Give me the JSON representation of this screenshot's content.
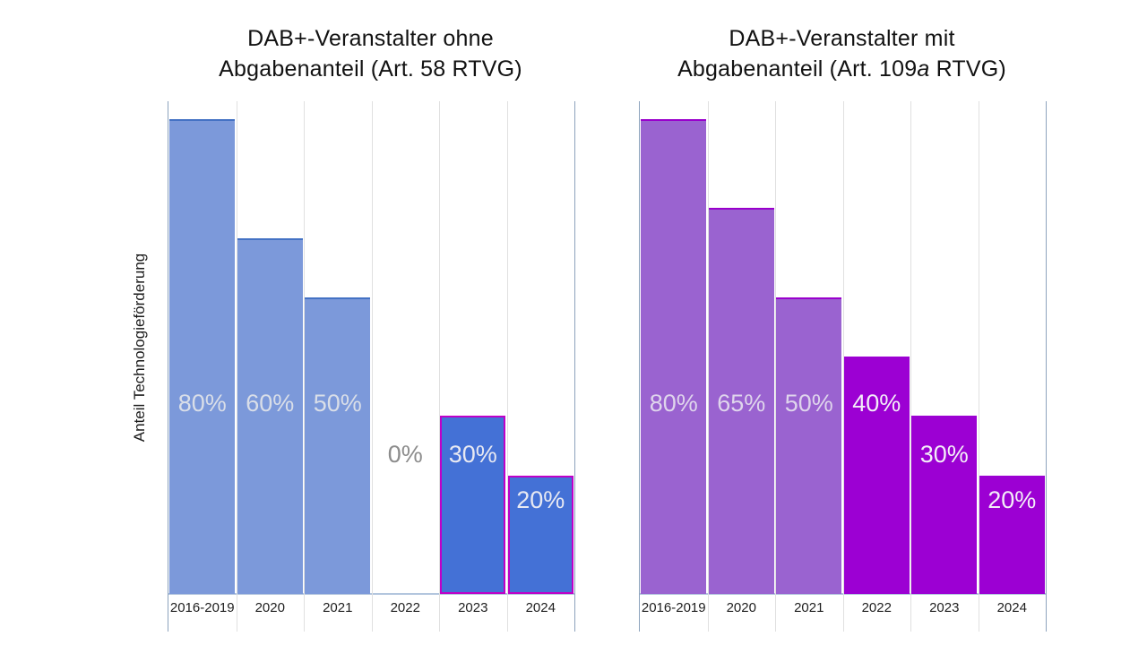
{
  "colors": {
    "plot_border": "#8da3bd",
    "gridline": "#e0e0e0",
    "axis_line": "#b3c6de",
    "zero_label": "#8c8c8c"
  },
  "chart_data": [
    {
      "type": "bar",
      "title_line1": "DAB+-Veranstalter ohne",
      "title_line2_pre": "Abgabenanteil (Art. 58 RTVG)",
      "title_line2_italic": "",
      "title_line2_post": "",
      "xlabel": "",
      "ylabel": "Anteil Technologieförderung",
      "ylim": [
        0,
        83
      ],
      "grid": "vertical",
      "legend": "none",
      "categories": [
        "2016-2019",
        "2020",
        "2021",
        "2022",
        "2023",
        "2024"
      ],
      "values": [
        80,
        60,
        50,
        0,
        30,
        20
      ],
      "value_labels": [
        "80%",
        "60%",
        "50%",
        "0%",
        "30%",
        "20%"
      ],
      "label_y_from_bottom": [
        213,
        213,
        213,
        156,
        156,
        105
      ],
      "bars": [
        {
          "fill": "#7c99da",
          "border": "#4472c4",
          "border_style": "top",
          "label_color": "#d9dee8"
        },
        {
          "fill": "#7c99da",
          "border": "#4472c4",
          "border_style": "top",
          "label_color": "#d9dee8"
        },
        {
          "fill": "#7c99da",
          "border": "#4472c4",
          "border_style": "top",
          "label_color": "#d9dee8"
        },
        {
          "fill": "none",
          "border": "none",
          "border_style": "none",
          "label_color": "#8c8c8c"
        },
        {
          "fill": "#4471d6",
          "border": "#bf00c8",
          "border_style": "full",
          "label_color": "#e8e9f2"
        },
        {
          "fill": "#4471d6",
          "border": "#bf00c8",
          "border_style": "full",
          "label_color": "#e8e9f2"
        }
      ]
    },
    {
      "type": "bar",
      "title_line1": "DAB+-Veranstalter mit",
      "title_line2_pre": "Abgabenanteil (Art. 109",
      "title_line2_italic": "a",
      "title_line2_post": " RTVG)",
      "xlabel": "",
      "ylabel": "",
      "ylim": [
        0,
        83
      ],
      "grid": "vertical",
      "legend": "none",
      "categories": [
        "2016-2019",
        "2020",
        "2021",
        "2022",
        "2023",
        "2024"
      ],
      "values": [
        80,
        65,
        50,
        40,
        30,
        20
      ],
      "value_labels": [
        "80%",
        "65%",
        "50%",
        "40%",
        "30%",
        "20%"
      ],
      "label_y_from_bottom": [
        213,
        213,
        213,
        213,
        156,
        105
      ],
      "bars": [
        {
          "fill": "#9a63d0",
          "border": "#9900cc",
          "border_style": "top",
          "label_color": "#dfd5ec"
        },
        {
          "fill": "#9a63d0",
          "border": "#9900cc",
          "border_style": "top",
          "label_color": "#dfd5ec"
        },
        {
          "fill": "#9a63d0",
          "border": "#9900cc",
          "border_style": "top",
          "label_color": "#dfd5ec"
        },
        {
          "fill": "#9c00d3",
          "border": "#9c00d3",
          "border_style": "none",
          "label_color": "#f3edf8"
        },
        {
          "fill": "#9c00d3",
          "border": "#9c00d3",
          "border_style": "none",
          "label_color": "#f3edf8"
        },
        {
          "fill": "#9c00d3",
          "border": "#9c00d3",
          "border_style": "none",
          "label_color": "#f3edf8"
        }
      ]
    }
  ]
}
